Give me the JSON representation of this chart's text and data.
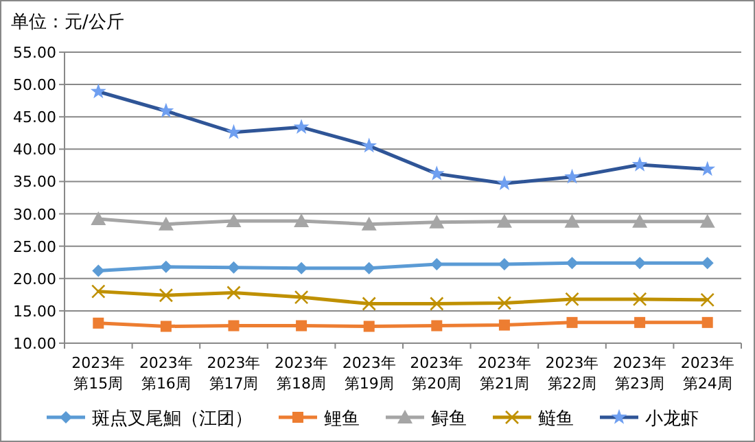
{
  "chart_data": {
    "type": "line",
    "title": "单位：元/公斤",
    "categories": [
      "2023年第15周",
      "2023年第16周",
      "2023年第17周",
      "2023年第18周",
      "2023年第19周",
      "2023年第20周",
      "2023年第21周",
      "2023年第22周",
      "2023年第23周",
      "2023年第24周"
    ],
    "series": [
      {
        "name": "斑点叉尾鮰（江团）",
        "color": "#5b9bd5",
        "marker": "diamond",
        "values": [
          21.2,
          21.8,
          21.7,
          21.6,
          21.6,
          22.2,
          22.2,
          22.4,
          22.4,
          22.4
        ]
      },
      {
        "name": "鲤鱼",
        "color": "#ed7d31",
        "marker": "square",
        "values": [
          13.1,
          12.6,
          12.7,
          12.7,
          12.6,
          12.7,
          12.8,
          13.2,
          13.2,
          13.2
        ]
      },
      {
        "name": "鲟鱼",
        "color": "#a5a5a5",
        "marker": "triangle",
        "values": [
          29.2,
          28.4,
          28.9,
          28.9,
          28.4,
          28.7,
          28.8,
          28.8,
          28.8,
          28.8
        ]
      },
      {
        "name": "鲢鱼",
        "color": "#bf9000",
        "marker": "cross",
        "values": [
          18.0,
          17.4,
          17.8,
          17.1,
          16.1,
          16.1,
          16.2,
          16.8,
          16.8,
          16.7
        ]
      },
      {
        "name": "小龙虾",
        "color": "#2f5597",
        "marker": "star",
        "values": [
          48.9,
          45.9,
          42.6,
          43.4,
          40.5,
          36.2,
          34.7,
          35.7,
          37.6,
          36.9
        ]
      }
    ],
    "ylim": [
      10,
      55
    ],
    "yticks": [
      {
        "value": 10,
        "label": "10.00"
      },
      {
        "value": 15,
        "label": "15.00"
      },
      {
        "value": 20,
        "label": "20.00"
      },
      {
        "value": 25,
        "label": "25.00"
      },
      {
        "value": 30,
        "label": "30.00"
      },
      {
        "value": 35,
        "label": "35.00"
      },
      {
        "value": 40,
        "label": "40.00"
      },
      {
        "value": 45,
        "label": "45.00"
      },
      {
        "value": 50,
        "label": "50.00"
      },
      {
        "value": 55,
        "label": "55.00"
      }
    ],
    "grid": "y",
    "legend": "bottom"
  }
}
